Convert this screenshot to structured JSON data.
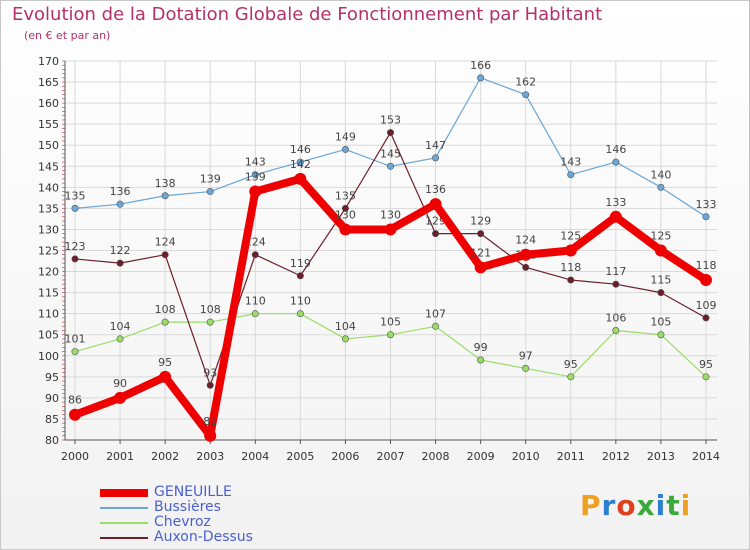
{
  "title": "Evolution de la Dotation Globale de Fonctionnement par Habitant",
  "subtitle": "(en € et par an)",
  "logo": {
    "text": "Proxiti"
  },
  "colors": {
    "title": "#b5306a",
    "legend_text": "#4a5fd0",
    "grid": "#d9d9d9",
    "axis": "#555555",
    "tick_label": "#333333",
    "data_label": "#444444"
  },
  "chart_data": {
    "type": "line",
    "title": "Evolution de la Dotation Globale de Fonctionnement par Habitant",
    "subtitle": "(en € et par an)",
    "xlabel": "",
    "ylabel": "",
    "x": [
      "2000",
      "2001",
      "2002",
      "2003",
      "2004",
      "2005",
      "2006",
      "2007",
      "2008",
      "2009",
      "2010",
      "2011",
      "2012",
      "2013",
      "2014"
    ],
    "ylim": [
      80,
      170
    ],
    "yticks": [
      80,
      85,
      90,
      95,
      100,
      105,
      110,
      115,
      120,
      125,
      130,
      135,
      140,
      145,
      150,
      155,
      160,
      165,
      170
    ],
    "grid": true,
    "legend_position": "bottom-left",
    "series": [
      {
        "name": "Bussières",
        "color": "#6aa6d6",
        "values": [
          135,
          136,
          138,
          139,
          143,
          146,
          149,
          145,
          147,
          166,
          162,
          143,
          146,
          140,
          133
        ]
      },
      {
        "name": "Chevroz",
        "color": "#99dd66",
        "values": [
          101,
          104,
          108,
          108,
          110,
          110,
          104,
          105,
          107,
          99,
          97,
          95,
          106,
          105,
          95
        ]
      },
      {
        "name": "Auxon-Dessus",
        "color": "#6b1f2a",
        "values": [
          123,
          122,
          124,
          93,
          124,
          119,
          135,
          153,
          129,
          129,
          121,
          118,
          117,
          115,
          109
        ]
      },
      {
        "name": "GENEUILLE",
        "color": "#ee0000",
        "values": [
          86,
          90,
          95,
          81,
          139,
          142,
          130,
          130,
          136,
          121,
          124,
          125,
          133,
          125,
          118
        ]
      }
    ]
  },
  "legend": [
    {
      "name": "GENEUILLE",
      "color": "#ee0000"
    },
    {
      "name": "Bussières",
      "color": "#6aa6d6"
    },
    {
      "name": "Chevroz",
      "color": "#99dd66"
    },
    {
      "name": "Auxon-Dessus",
      "color": "#6b1f2a"
    }
  ]
}
